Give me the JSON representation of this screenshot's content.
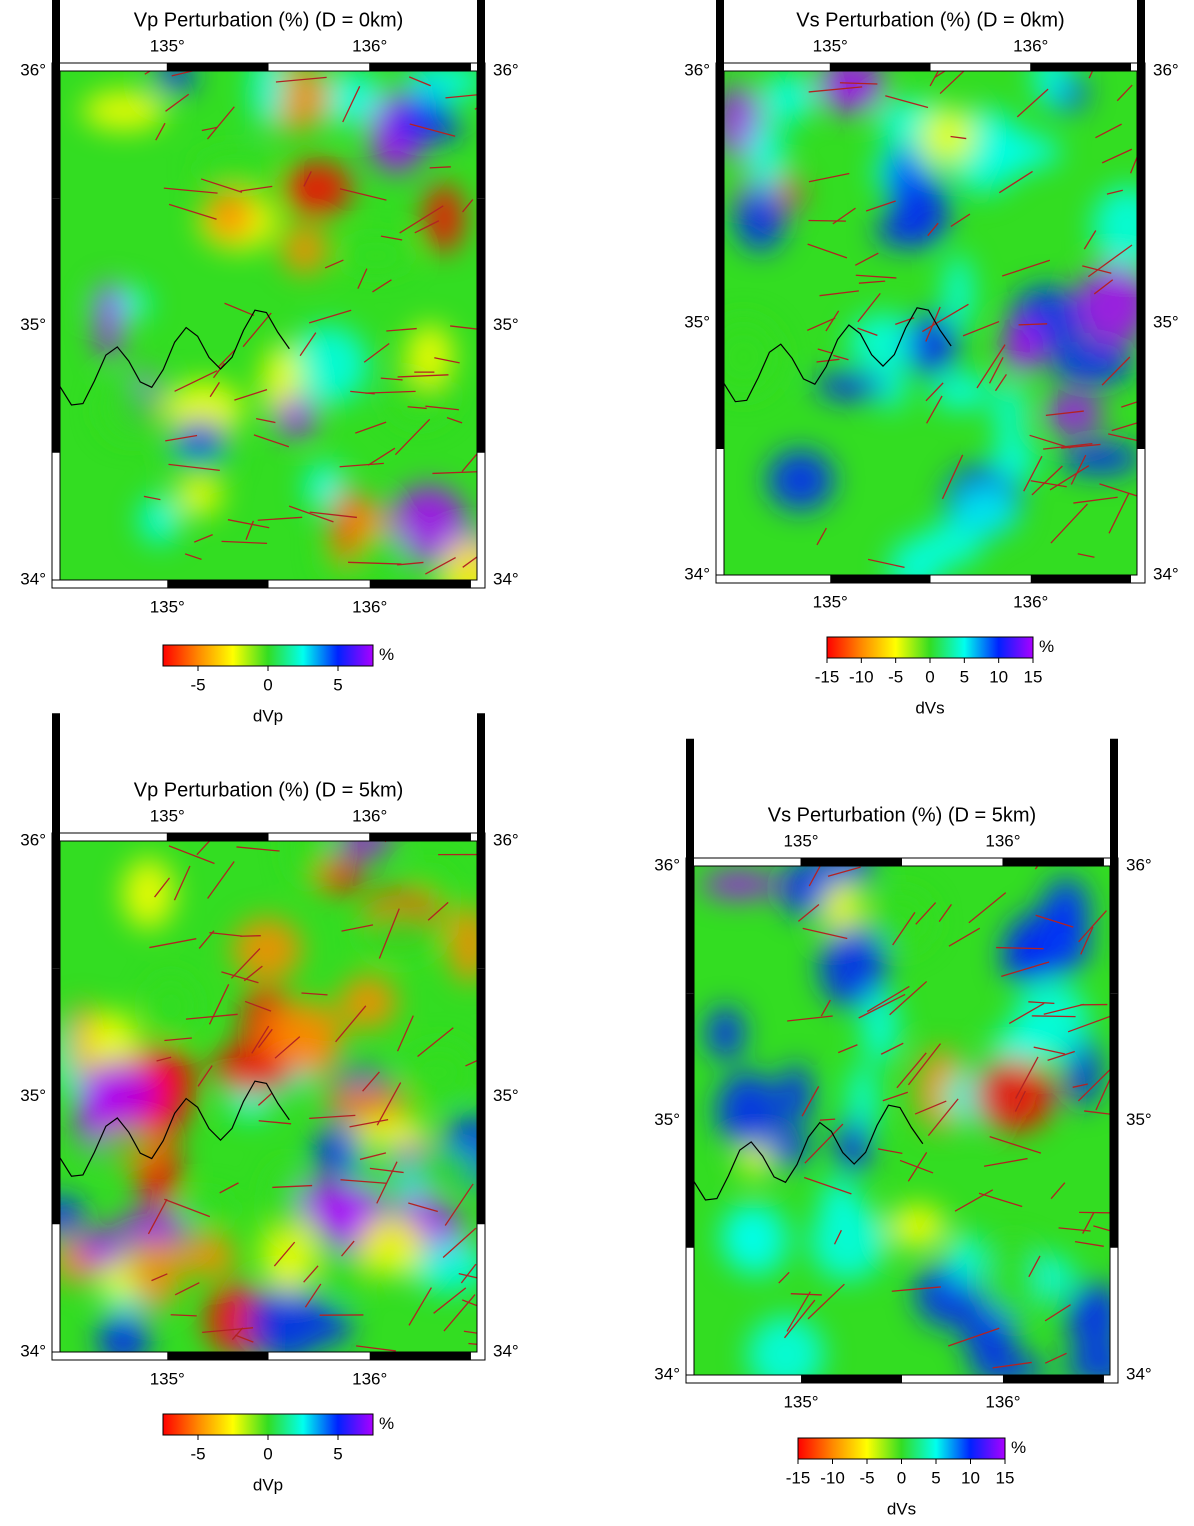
{
  "colormap": [
    "#ff0000",
    "#ff8800",
    "#ffff00",
    "#33dd22",
    "#00ffee",
    "#0022ff",
    "#aa00ff"
  ],
  "panels": [
    {
      "title": "Vp Perturbation (%) (D = 0km)",
      "xlim": [
        134.47,
        136.53
      ],
      "ylim": [
        34,
        36
      ],
      "xticks": [
        {
          "value": 135,
          "label": "135°"
        },
        {
          "value": 136,
          "label": "136°"
        }
      ],
      "yticks": [
        {
          "value": 34,
          "label": "34°"
        },
        {
          "value": 35,
          "label": "35°"
        },
        {
          "value": 36,
          "label": "36°"
        }
      ],
      "colorbar": {
        "label": "dVp",
        "unit": "%",
        "lim": [
          -7.5,
          7.5
        ],
        "ticks": [
          -5,
          0,
          5
        ]
      }
    },
    {
      "title": "Vs Perturbation (%) (D = 0km)",
      "xlim": [
        134.47,
        136.53
      ],
      "ylim": [
        34,
        36
      ],
      "xticks": [
        {
          "value": 135,
          "label": "135°"
        },
        {
          "value": 136,
          "label": "136°"
        }
      ],
      "yticks": [
        {
          "value": 34,
          "label": "34°"
        },
        {
          "value": 35,
          "label": "35°"
        },
        {
          "value": 36,
          "label": "36°"
        }
      ],
      "colorbar": {
        "label": "dVs",
        "unit": "%",
        "lim": [
          -15,
          15
        ],
        "ticks": [
          -15,
          -10,
          -5,
          0,
          5,
          10,
          15
        ]
      }
    },
    {
      "title": "Vp Perturbation (%) (D = 5km)",
      "xlim": [
        134.47,
        136.53
      ],
      "ylim": [
        34,
        36
      ],
      "xticks": [
        {
          "value": 135,
          "label": "135°"
        },
        {
          "value": 136,
          "label": "136°"
        }
      ],
      "yticks": [
        {
          "value": 34,
          "label": "34°"
        },
        {
          "value": 35,
          "label": "35°"
        },
        {
          "value": 36,
          "label": "36°"
        }
      ],
      "colorbar": {
        "label": "dVp",
        "unit": "%",
        "lim": [
          -7.5,
          7.5
        ],
        "ticks": [
          -5,
          0,
          5
        ]
      }
    },
    {
      "title": "Vs Perturbation (%) (D = 5km)",
      "xlim": [
        134.47,
        136.53
      ],
      "ylim": [
        34,
        36
      ],
      "xticks": [
        {
          "value": 135,
          "label": "135°"
        },
        {
          "value": 136,
          "label": "136°"
        }
      ],
      "yticks": [
        {
          "value": 34,
          "label": "34°"
        },
        {
          "value": 35,
          "label": "35°"
        },
        {
          "value": 36,
          "label": "36°"
        }
      ],
      "colorbar": {
        "label": "dVs",
        "unit": "%",
        "lim": [
          -15,
          15
        ],
        "ticks": [
          -15,
          -10,
          -5,
          0,
          5,
          10,
          15
        ]
      }
    }
  ]
}
